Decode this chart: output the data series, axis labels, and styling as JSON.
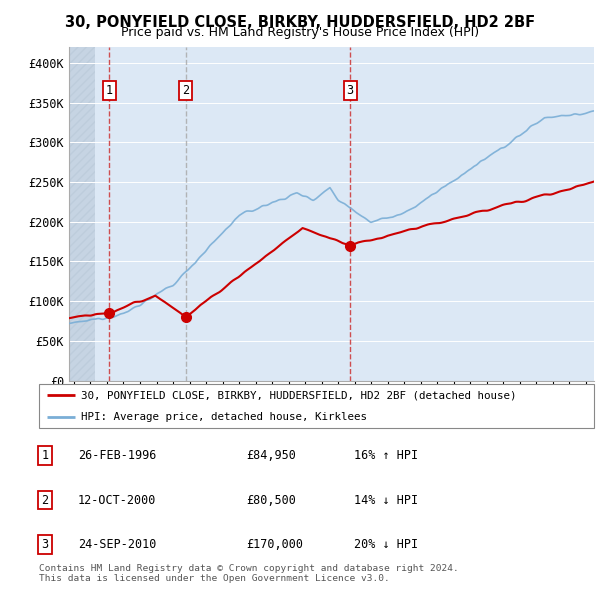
{
  "title": "30, PONYFIELD CLOSE, BIRKBY, HUDDERSFIELD, HD2 2BF",
  "subtitle": "Price paid vs. HM Land Registry's House Price Index (HPI)",
  "xlim": [
    1993.7,
    2025.5
  ],
  "ylim": [
    0,
    420000
  ],
  "yticks": [
    0,
    50000,
    100000,
    150000,
    200000,
    250000,
    300000,
    350000,
    400000
  ],
  "ytick_labels": [
    "£0",
    "£50K",
    "£100K",
    "£150K",
    "£200K",
    "£250K",
    "£300K",
    "£350K",
    "£400K"
  ],
  "sale_dates": [
    1996.15,
    2000.78,
    2010.73
  ],
  "sale_prices": [
    84950,
    80500,
    170000
  ],
  "sale_labels": [
    "1",
    "2",
    "3"
  ],
  "red_color": "#cc0000",
  "blue_color": "#7aaed6",
  "legend_entry1": "30, PONYFIELD CLOSE, BIRKBY, HUDDERSFIELD, HD2 2BF (detached house)",
  "legend_entry2": "HPI: Average price, detached house, Kirklees",
  "table_rows": [
    [
      "1",
      "26-FEB-1996",
      "£84,950",
      "16% ↑ HPI"
    ],
    [
      "2",
      "12-OCT-2000",
      "£80,500",
      "14% ↓ HPI"
    ],
    [
      "3",
      "24-SEP-2010",
      "£170,000",
      "20% ↓ HPI"
    ]
  ],
  "footer": "Contains HM Land Registry data © Crown copyright and database right 2024.\nThis data is licensed under the Open Government Licence v3.0.",
  "plot_bg": "#dce8f5",
  "hatch_end": 1995.3
}
